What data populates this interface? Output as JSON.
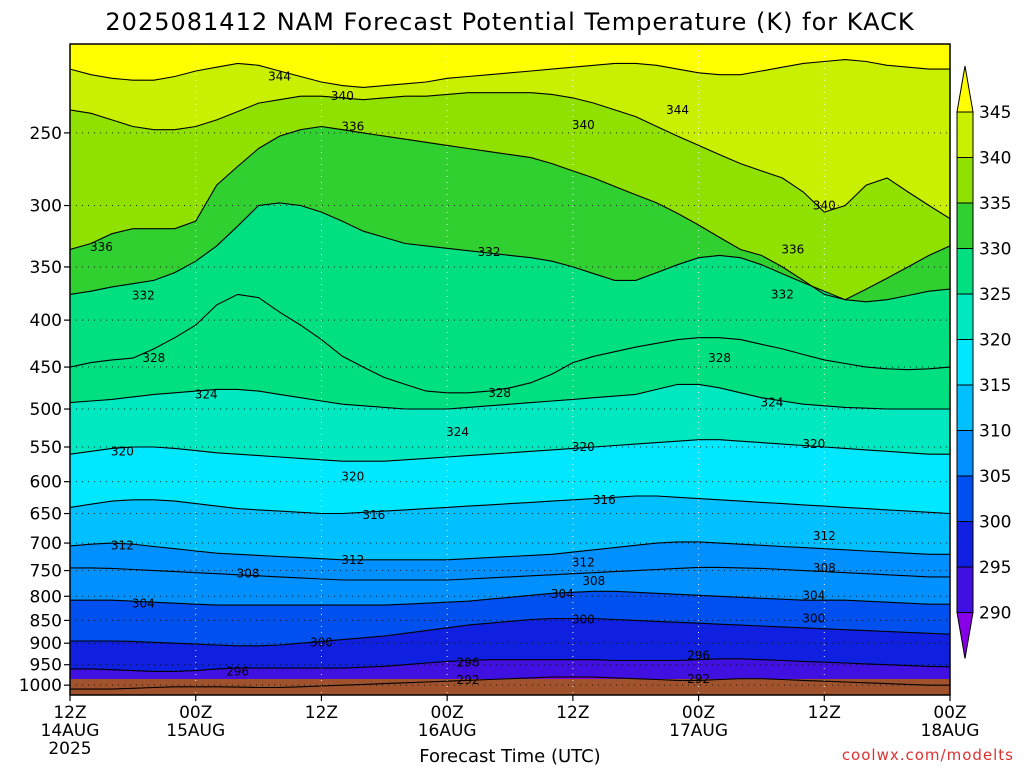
{
  "chart_data": {
    "type": "heatmap",
    "title": "2025081412 NAM Forecast Potential Temperature (K) for KACK",
    "xlabel": "Forecast Time (UTC)",
    "ylabel": "",
    "x_ticks": [
      {
        "hour": 0,
        "line1": "12Z",
        "line2": "14AUG",
        "line3": "2025"
      },
      {
        "hour": 12,
        "line1": "00Z",
        "line2": "15AUG",
        "line3": ""
      },
      {
        "hour": 24,
        "line1": "12Z",
        "line2": "",
        "line3": ""
      },
      {
        "hour": 36,
        "line1": "00Z",
        "line2": "16AUG",
        "line3": ""
      },
      {
        "hour": 48,
        "line1": "12Z",
        "line2": "",
        "line3": ""
      },
      {
        "hour": 60,
        "line1": "00Z",
        "line2": "17AUG",
        "line3": ""
      },
      {
        "hour": 72,
        "line1": "12Z",
        "line2": "",
        "line3": ""
      },
      {
        "hour": 84,
        "line1": "00Z",
        "line2": "18AUG",
        "line3": ""
      }
    ],
    "x_range_hours": [
      0,
      84
    ],
    "y_ticks": [
      250,
      300,
      350,
      400,
      450,
      500,
      550,
      600,
      650,
      700,
      750,
      800,
      850,
      900,
      950,
      1000
    ],
    "y_range_hPa": [
      1025,
      200
    ],
    "y_scale": "log-pressure",
    "grid": true,
    "colorbar": {
      "labels": [
        345,
        340,
        335,
        330,
        325,
        320,
        315,
        310,
        305,
        300,
        295,
        290
      ],
      "colors": [
        "#ffff00",
        "#c8f000",
        "#90e000",
        "#30d030",
        "#00e080",
        "#00e8c0",
        "#00e8ff",
        "#00c0ff",
        "#0090ff",
        "#0050f0",
        "#1020e0",
        "#4010e0",
        "#8800e8"
      ]
    },
    "contour_interval": 4,
    "contours": [
      {
        "theta": 344,
        "p": [
          213,
          216,
          218,
          219,
          219,
          217,
          214,
          212,
          210,
          211,
          214,
          217,
          220,
          222,
          223,
          222,
          221,
          220,
          218,
          217,
          216,
          215,
          214,
          213,
          212,
          211,
          210,
          210,
          211,
          213,
          215,
          216,
          216,
          214,
          212,
          210,
          209,
          208,
          209,
          211,
          212,
          213,
          213
        ]
      },
      {
        "theta": 340,
        "p": [
          236,
          238,
          242,
          246,
          248,
          248,
          246,
          242,
          237,
          232,
          230,
          228,
          228,
          229,
          230,
          229,
          228,
          228,
          227,
          226,
          226,
          226,
          226,
          227,
          229,
          232,
          236,
          240,
          246,
          252,
          258,
          264,
          270,
          275,
          280,
          290,
          305,
          300,
          285,
          280,
          290,
          300,
          310
        ]
      },
      {
        "theta": 336,
        "p": [
          335,
          330,
          322,
          318,
          318,
          318,
          312,
          285,
          272,
          260,
          252,
          248,
          246,
          248,
          250,
          252,
          254,
          256,
          258,
          260,
          262,
          264,
          266,
          270,
          275,
          280,
          286,
          292,
          298,
          306,
          315,
          325,
          335,
          340,
          350,
          362,
          375,
          380,
          370,
          360,
          350,
          340,
          332
        ]
      },
      {
        "theta": 332,
        "p": [
          375,
          372,
          368,
          365,
          362,
          355,
          345,
          332,
          316,
          300,
          298,
          300,
          305,
          312,
          320,
          325,
          330,
          332,
          334,
          336,
          338,
          340,
          342,
          345,
          350,
          356,
          362,
          362,
          355,
          348,
          342,
          340,
          342,
          348,
          356,
          364,
          372,
          380,
          382,
          380,
          376,
          372,
          370
        ]
      },
      {
        "theta": 328,
        "p": [
          450,
          445,
          442,
          440,
          430,
          418,
          405,
          385,
          375,
          378,
          392,
          405,
          420,
          438,
          450,
          462,
          470,
          478,
          480,
          480,
          478,
          474,
          468,
          458,
          445,
          438,
          433,
          428,
          424,
          420,
          418,
          418,
          420,
          425,
          430,
          436,
          442,
          446,
          450,
          452,
          453,
          452,
          450
        ]
      },
      {
        "theta": 324,
        "p": [
          492,
          490,
          488,
          485,
          482,
          480,
          478,
          476,
          476,
          478,
          482,
          486,
          490,
          494,
          496,
          498,
          500,
          500,
          500,
          498,
          496,
          494,
          492,
          490,
          488,
          486,
          484,
          482,
          476,
          470,
          470,
          474,
          480,
          486,
          490,
          494,
          496,
          498,
          499,
          500,
          500,
          500,
          500
        ]
      },
      {
        "theta": 320,
        "p": [
          560,
          556,
          552,
          550,
          550,
          552,
          555,
          558,
          560,
          562,
          564,
          566,
          568,
          570,
          570,
          570,
          568,
          566,
          564,
          562,
          560,
          558,
          556,
          554,
          552,
          550,
          548,
          546,
          544,
          542,
          540,
          540,
          542,
          544,
          546,
          548,
          550,
          552,
          554,
          556,
          558,
          560,
          560
        ]
      },
      {
        "theta": 316,
        "p": [
          640,
          635,
          630,
          628,
          628,
          630,
          634,
          638,
          642,
          644,
          646,
          648,
          650,
          650,
          648,
          646,
          644,
          642,
          640,
          638,
          636,
          634,
          632,
          630,
          628,
          626,
          624,
          622,
          622,
          624,
          626,
          628,
          630,
          632,
          634,
          636,
          638,
          640,
          642,
          644,
          646,
          648,
          650
        ]
      },
      {
        "theta": 312,
        "p": [
          705,
          702,
          700,
          702,
          706,
          710,
          714,
          718,
          720,
          722,
          724,
          726,
          728,
          730,
          730,
          730,
          730,
          730,
          730,
          728,
          726,
          724,
          722,
          720,
          716,
          712,
          708,
          704,
          700,
          698,
          698,
          700,
          702,
          704,
          706,
          708,
          710,
          712,
          714,
          716,
          718,
          720,
          720
        ]
      },
      {
        "theta": 308,
        "p": [
          745,
          745,
          746,
          748,
          750,
          752,
          754,
          756,
          758,
          760,
          762,
          764,
          766,
          768,
          768,
          768,
          768,
          768,
          768,
          766,
          764,
          762,
          760,
          758,
          756,
          754,
          752,
          750,
          748,
          746,
          744,
          744,
          745,
          746,
          748,
          750,
          752,
          754,
          756,
          758,
          760,
          762,
          762
        ]
      },
      {
        "theta": 304,
        "p": [
          808,
          808,
          808,
          810,
          812,
          814,
          816,
          818,
          818,
          818,
          818,
          818,
          818,
          818,
          818,
          818,
          816,
          814,
          812,
          810,
          806,
          802,
          798,
          794,
          792,
          790,
          790,
          792,
          794,
          796,
          798,
          800,
          802,
          804,
          806,
          808,
          808,
          808,
          810,
          812,
          814,
          816,
          816
        ]
      },
      {
        "theta": 300,
        "p": [
          895,
          895,
          895,
          896,
          898,
          900,
          902,
          904,
          906,
          906,
          904,
          900,
          896,
          892,
          888,
          884,
          878,
          872,
          866,
          860,
          856,
          852,
          848,
          846,
          846,
          846,
          848,
          850,
          852,
          854,
          856,
          858,
          860,
          862,
          864,
          866,
          868,
          870,
          872,
          874,
          876,
          878,
          880
        ]
      },
      {
        "theta": 296,
        "p": [
          960,
          960,
          962,
          964,
          966,
          966,
          964,
          960,
          958,
          958,
          958,
          958,
          958,
          958,
          956,
          954,
          950,
          946,
          942,
          940,
          938,
          938,
          938,
          938,
          938,
          938,
          940,
          940,
          940,
          940,
          938,
          936,
          936,
          938,
          940,
          942,
          944,
          946,
          948,
          950,
          952,
          954,
          955
        ]
      },
      {
        "theta": 292,
        "p": [
          1010,
          1010,
          1010,
          1008,
          1006,
          1004,
          1004,
          1004,
          1005,
          1006,
          1006,
          1004,
          1002,
          1000,
          998,
          996,
          994,
          992,
          990,
          988,
          986,
          984,
          982,
          980,
          980,
          980,
          982,
          984,
          986,
          988,
          988,
          986,
          984,
          984,
          986,
          988,
          990,
          992,
          994,
          996,
          998,
          1000,
          1000
        ]
      }
    ],
    "contour_labels": [
      {
        "text": "344",
        "hour": 20,
        "p": 217
      },
      {
        "text": "340",
        "hour": 26,
        "p": 228
      },
      {
        "text": "344",
        "hour": 58,
        "p": 236
      },
      {
        "text": "340",
        "hour": 49,
        "p": 245
      },
      {
        "text": "336",
        "hour": 27,
        "p": 246
      },
      {
        "text": "340",
        "hour": 72,
        "p": 300
      },
      {
        "text": "336",
        "hour": 3,
        "p": 333
      },
      {
        "text": "332",
        "hour": 40,
        "p": 337
      },
      {
        "text": "336",
        "hour": 69,
        "p": 335
      },
      {
        "text": "332",
        "hour": 7,
        "p": 376
      },
      {
        "text": "332",
        "hour": 68,
        "p": 375
      },
      {
        "text": "328",
        "hour": 8,
        "p": 440
      },
      {
        "text": "328",
        "hour": 62,
        "p": 440
      },
      {
        "text": "328",
        "hour": 41,
        "p": 480
      },
      {
        "text": "324",
        "hour": 13,
        "p": 482
      },
      {
        "text": "324",
        "hour": 67,
        "p": 492
      },
      {
        "text": "324",
        "hour": 37,
        "p": 530
      },
      {
        "text": "320",
        "hour": 5,
        "p": 556
      },
      {
        "text": "320",
        "hour": 49,
        "p": 550
      },
      {
        "text": "320",
        "hour": 71,
        "p": 546
      },
      {
        "text": "320",
        "hour": 27,
        "p": 592
      },
      {
        "text": "316",
        "hour": 29,
        "p": 652
      },
      {
        "text": "316",
        "hour": 51,
        "p": 628
      },
      {
        "text": "312",
        "hour": 5,
        "p": 704
      },
      {
        "text": "312",
        "hour": 72,
        "p": 688
      },
      {
        "text": "312",
        "hour": 27,
        "p": 730
      },
      {
        "text": "312",
        "hour": 49,
        "p": 735
      },
      {
        "text": "308",
        "hour": 17,
        "p": 756
      },
      {
        "text": "308",
        "hour": 50,
        "p": 770
      },
      {
        "text": "308",
        "hour": 72,
        "p": 745
      },
      {
        "text": "304",
        "hour": 7,
        "p": 815
      },
      {
        "text": "304",
        "hour": 47,
        "p": 795
      },
      {
        "text": "304",
        "hour": 71,
        "p": 798
      },
      {
        "text": "300",
        "hour": 49,
        "p": 848
      },
      {
        "text": "300",
        "hour": 71,
        "p": 846
      },
      {
        "text": "300",
        "hour": 24,
        "p": 898
      },
      {
        "text": "296",
        "hour": 38,
        "p": 945
      },
      {
        "text": "296",
        "hour": 60,
        "p": 928
      },
      {
        "text": "296",
        "hour": 16,
        "p": 966
      },
      {
        "text": "292",
        "hour": 38,
        "p": 987
      },
      {
        "text": "292",
        "hour": 60,
        "p": 985
      }
    ]
  },
  "credit": "coolwx.com/modelts"
}
